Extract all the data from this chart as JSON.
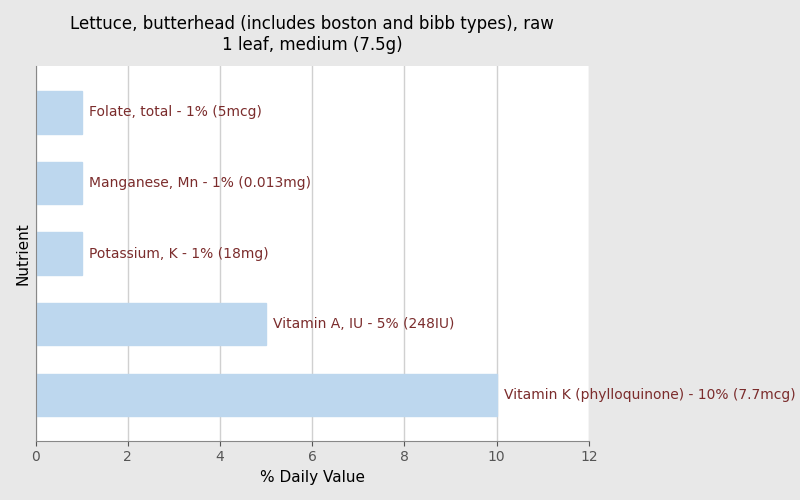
{
  "title": "Lettuce, butterhead (includes boston and bibb types), raw\n1 leaf, medium (7.5g)",
  "xlabel": "% Daily Value",
  "ylabel": "Nutrient",
  "figure_background_color": "#e8e8e8",
  "plot_background_color": "#ffffff",
  "bar_color": "#bdd7ee",
  "categories": [
    "Vitamin K (phylloquinone) - 10% (7.7mcg)",
    "Vitamin A, IU - 5% (248IU)",
    "Potassium, K - 1% (18mg)",
    "Manganese, Mn - 1% (0.013mg)",
    "Folate, total - 1% (5mcg)"
  ],
  "values": [
    10,
    5,
    1,
    1,
    1
  ],
  "xlim": [
    0,
    12
  ],
  "xticks": [
    0,
    2,
    4,
    6,
    8,
    10,
    12
  ],
  "label_color": "#7b2c2c",
  "label_fontsize": 10,
  "title_fontsize": 12,
  "axis_label_fontsize": 11,
  "grid_color": "#d0d0d0",
  "bar_height": 0.6,
  "figsize": [
    8.0,
    5.0
  ],
  "dpi": 100
}
